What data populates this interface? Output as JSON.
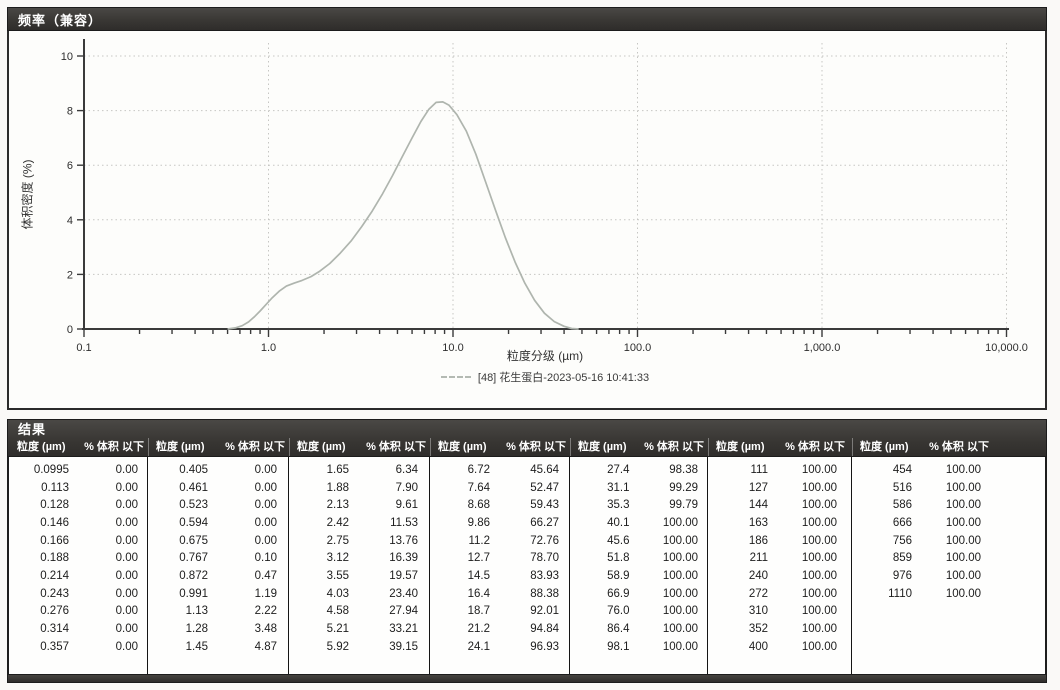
{
  "chart_panel": {
    "title": "频率（兼容）"
  },
  "chart_data": {
    "type": "line",
    "title": "频率（兼容）",
    "xlabel": "粒度分级 (µm)",
    "ylabel": "体积密度 (%)",
    "x_scale": "log",
    "xlim": [
      0.1,
      10000
    ],
    "ylim": [
      0,
      10
    ],
    "x_ticks": [
      "0.1",
      "1.0",
      "10.0",
      "100.0",
      "1,000.0",
      "10,000.0"
    ],
    "y_ticks": [
      "0",
      "2",
      "4",
      "6",
      "8",
      "10"
    ],
    "grid": true,
    "legend_position": "bottom",
    "series": [
      {
        "name": "[48] 花生蛋白-2023-05-16 10:41:33",
        "color": "#afb5ae",
        "points": [
          [
            0.6,
            0.0
          ],
          [
            0.66,
            0.04
          ],
          [
            0.72,
            0.12
          ],
          [
            0.78,
            0.26
          ],
          [
            0.84,
            0.45
          ],
          [
            0.9,
            0.66
          ],
          [
            0.97,
            0.9
          ],
          [
            1.05,
            1.15
          ],
          [
            1.15,
            1.4
          ],
          [
            1.25,
            1.57
          ],
          [
            1.38,
            1.68
          ],
          [
            1.52,
            1.78
          ],
          [
            1.7,
            1.92
          ],
          [
            1.9,
            2.12
          ],
          [
            2.15,
            2.4
          ],
          [
            2.45,
            2.78
          ],
          [
            2.8,
            3.22
          ],
          [
            3.2,
            3.75
          ],
          [
            3.65,
            4.32
          ],
          [
            4.15,
            4.95
          ],
          [
            4.7,
            5.62
          ],
          [
            5.3,
            6.3
          ],
          [
            6.0,
            7.0
          ],
          [
            6.7,
            7.6
          ],
          [
            7.4,
            8.05
          ],
          [
            8.1,
            8.3
          ],
          [
            8.8,
            8.32
          ],
          [
            9.5,
            8.2
          ],
          [
            10.5,
            7.85
          ],
          [
            11.8,
            7.25
          ],
          [
            13.3,
            6.4
          ],
          [
            15.0,
            5.4
          ],
          [
            17.0,
            4.35
          ],
          [
            19.2,
            3.35
          ],
          [
            21.7,
            2.45
          ],
          [
            24.5,
            1.68
          ],
          [
            27.7,
            1.05
          ],
          [
            31.3,
            0.58
          ],
          [
            35.4,
            0.27
          ],
          [
            40.0,
            0.1
          ],
          [
            44.0,
            0.02
          ],
          [
            48.0,
            0.0
          ]
        ]
      }
    ]
  },
  "results_panel": {
    "title": "结果",
    "size_header": "粒度 (µm)",
    "pct_header": "% 体积 以下",
    "groups": [
      {
        "rows": [
          [
            "0.0995",
            "0.00"
          ],
          [
            "0.113",
            "0.00"
          ],
          [
            "0.128",
            "0.00"
          ],
          [
            "0.146",
            "0.00"
          ],
          [
            "0.166",
            "0.00"
          ],
          [
            "0.188",
            "0.00"
          ],
          [
            "0.214",
            "0.00"
          ],
          [
            "0.243",
            "0.00"
          ],
          [
            "0.276",
            "0.00"
          ],
          [
            "0.314",
            "0.00"
          ],
          [
            "0.357",
            "0.00"
          ]
        ]
      },
      {
        "rows": [
          [
            "0.405",
            "0.00"
          ],
          [
            "0.461",
            "0.00"
          ],
          [
            "0.523",
            "0.00"
          ],
          [
            "0.594",
            "0.00"
          ],
          [
            "0.675",
            "0.00"
          ],
          [
            "0.767",
            "0.10"
          ],
          [
            "0.872",
            "0.47"
          ],
          [
            "0.991",
            "1.19"
          ],
          [
            "1.13",
            "2.22"
          ],
          [
            "1.28",
            "3.48"
          ],
          [
            "1.45",
            "4.87"
          ]
        ]
      },
      {
        "rows": [
          [
            "1.65",
            "6.34"
          ],
          [
            "1.88",
            "7.90"
          ],
          [
            "2.13",
            "9.61"
          ],
          [
            "2.42",
            "11.53"
          ],
          [
            "2.75",
            "13.76"
          ],
          [
            "3.12",
            "16.39"
          ],
          [
            "3.55",
            "19.57"
          ],
          [
            "4.03",
            "23.40"
          ],
          [
            "4.58",
            "27.94"
          ],
          [
            "5.21",
            "33.21"
          ],
          [
            "5.92",
            "39.15"
          ]
        ]
      },
      {
        "rows": [
          [
            "6.72",
            "45.64"
          ],
          [
            "7.64",
            "52.47"
          ],
          [
            "8.68",
            "59.43"
          ],
          [
            "9.86",
            "66.27"
          ],
          [
            "11.2",
            "72.76"
          ],
          [
            "12.7",
            "78.70"
          ],
          [
            "14.5",
            "83.93"
          ],
          [
            "16.4",
            "88.38"
          ],
          [
            "18.7",
            "92.01"
          ],
          [
            "21.2",
            "94.84"
          ],
          [
            "24.1",
            "96.93"
          ]
        ]
      },
      {
        "rows": [
          [
            "27.4",
            "98.38"
          ],
          [
            "31.1",
            "99.29"
          ],
          [
            "35.3",
            "99.79"
          ],
          [
            "40.1",
            "100.00"
          ],
          [
            "45.6",
            "100.00"
          ],
          [
            "51.8",
            "100.00"
          ],
          [
            "58.9",
            "100.00"
          ],
          [
            "66.9",
            "100.00"
          ],
          [
            "76.0",
            "100.00"
          ],
          [
            "86.4",
            "100.00"
          ],
          [
            "98.1",
            "100.00"
          ]
        ]
      },
      {
        "rows": [
          [
            "111",
            "100.00"
          ],
          [
            "127",
            "100.00"
          ],
          [
            "144",
            "100.00"
          ],
          [
            "163",
            "100.00"
          ],
          [
            "186",
            "100.00"
          ],
          [
            "211",
            "100.00"
          ],
          [
            "240",
            "100.00"
          ],
          [
            "272",
            "100.00"
          ],
          [
            "310",
            "100.00"
          ],
          [
            "352",
            "100.00"
          ],
          [
            "400",
            "100.00"
          ]
        ]
      },
      {
        "rows": [
          [
            "454",
            "100.00"
          ],
          [
            "516",
            "100.00"
          ],
          [
            "586",
            "100.00"
          ],
          [
            "666",
            "100.00"
          ],
          [
            "756",
            "100.00"
          ],
          [
            "859",
            "100.00"
          ],
          [
            "976",
            "100.00"
          ],
          [
            "1110",
            "100.00"
          ]
        ]
      }
    ]
  }
}
